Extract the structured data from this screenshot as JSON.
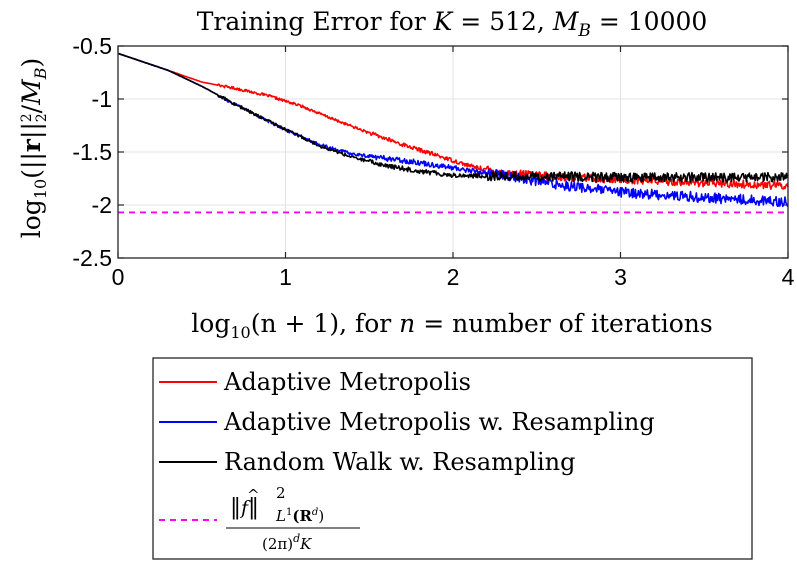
{
  "chart_data": {
    "type": "line",
    "title": "Training Error for K = 512, M_B = 10000",
    "title_parts": {
      "prefix": "Training Error for ",
      "k_symbol": "K",
      "k_eq": " = 512, ",
      "m_symbol": "M",
      "m_sub": "B",
      "m_eq": " = 10000"
    },
    "xlabel": "log10(n + 1), for n = number of iterations",
    "xlabel_parts": {
      "log": "log",
      "log_sub": "10",
      "arg": "(n + 1), for ",
      "n": "n",
      "rest": " = number of iterations"
    },
    "ylabel": "log10(||r||2^2 / M_B)",
    "ylabel_parts": {
      "log": "log",
      "log_sub": "10",
      "open": "(||",
      "r": "r",
      "close": "||",
      "sub": "2",
      "sup": "2",
      "slash": "/",
      "m": "M",
      "m_sub": "B",
      "end": ")"
    },
    "xlim": [
      0,
      4
    ],
    "ylim": [
      -2.5,
      -0.5
    ],
    "xticks": [
      "0",
      "1",
      "2",
      "3",
      "4"
    ],
    "yticks": [
      "-0.5",
      "-1",
      "-1.5",
      "-2",
      "-2.5"
    ],
    "grid": true,
    "legend_position": "below",
    "series": [
      {
        "name": "Adaptive Metropolis",
        "color": "#ff0000",
        "noise": 0.012,
        "x": [
          0,
          0.3,
          0.5,
          0.7,
          0.9,
          1.1,
          1.3,
          1.5,
          1.7,
          1.9,
          2.1,
          2.3,
          2.6,
          3.0,
          3.5,
          4.0
        ],
        "y": [
          -0.57,
          -0.73,
          -0.84,
          -0.9,
          -0.97,
          -1.07,
          -1.2,
          -1.32,
          -1.43,
          -1.53,
          -1.63,
          -1.7,
          -1.73,
          -1.76,
          -1.79,
          -1.82
        ]
      },
      {
        "name": "Adaptive Metropolis w. Resampling",
        "color": "#0000ff",
        "noise": 0.015,
        "x": [
          0,
          0.3,
          0.5,
          0.7,
          0.9,
          1.0,
          1.1,
          1.2,
          1.4,
          1.6,
          1.8,
          2.0,
          2.3,
          2.6,
          3.0,
          3.5,
          4.0
        ],
        "y": [
          -0.57,
          -0.73,
          -0.88,
          -1.05,
          -1.21,
          -1.29,
          -1.36,
          -1.43,
          -1.52,
          -1.56,
          -1.6,
          -1.65,
          -1.72,
          -1.8,
          -1.88,
          -1.93,
          -1.97
        ]
      },
      {
        "name": "Random Walk w. Resampling",
        "color": "#000000",
        "noise": 0.014,
        "x": [
          0,
          0.3,
          0.5,
          0.7,
          0.9,
          1.0,
          1.1,
          1.2,
          1.4,
          1.6,
          1.8,
          2.0,
          2.3,
          2.6,
          3.0,
          3.5,
          4.0
        ],
        "y": [
          -0.57,
          -0.73,
          -0.88,
          -1.05,
          -1.21,
          -1.29,
          -1.36,
          -1.44,
          -1.55,
          -1.63,
          -1.68,
          -1.72,
          -1.73,
          -1.73,
          -1.74,
          -1.74,
          -1.74
        ]
      },
      {
        "name": "||f^||^2_{L^1(R^d)} / ((2π)^d K)",
        "color": "#ff00ff",
        "dashed": true,
        "x": [
          0,
          4
        ],
        "y": [
          -2.07,
          -2.07
        ]
      }
    ],
    "legend_dashed": {
      "norm": "‖",
      "f": "f",
      "hat": "^",
      "sup": "2",
      "sub": "L",
      "sub_sup": "1",
      "sub_rest": "(R",
      "sub_d": "d",
      "sub_end": ")",
      "den": "(2π)",
      "den_d": "d",
      "den_k": "K"
    }
  }
}
